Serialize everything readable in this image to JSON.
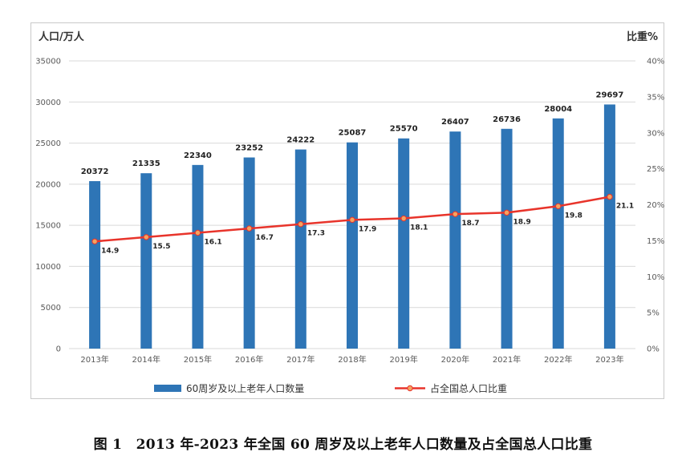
{
  "chart_data": {
    "type": "bar",
    "categories": [
      "2013年",
      "2014年",
      "2015年",
      "2016年",
      "2017年",
      "2018年",
      "2019年",
      "2020年",
      "2021年",
      "2022年",
      "2023年"
    ],
    "series": [
      {
        "name": "60周岁及以上老年人口数量",
        "type": "bar",
        "axis": "left",
        "color": "#2e75b6",
        "values": [
          20372,
          21335,
          22340,
          23252,
          24222,
          25087,
          25570,
          26407,
          26736,
          28004,
          29697
        ]
      },
      {
        "name": "占全国总人口比重",
        "type": "line",
        "axis": "right",
        "color": "#e8342b",
        "marker_color": "#f4a460",
        "values": [
          14.9,
          15.5,
          16.1,
          16.7,
          17.3,
          17.9,
          18.1,
          18.7,
          18.9,
          19.8,
          21.1
        ]
      }
    ],
    "ylabel": "人口/万人",
    "ylabel_right": "比重%",
    "ylim": [
      0,
      35000
    ],
    "yticks": [
      "0",
      "5000",
      "10000",
      "15000",
      "20000",
      "25000",
      "30000",
      "35000"
    ],
    "ylim_right": [
      0,
      40
    ],
    "yticks_right": [
      "0%",
      "5%",
      "10%",
      "15%",
      "20%",
      "25%",
      "30%",
      "35%",
      "40%"
    ],
    "grid": true,
    "legend_position": "bottom"
  },
  "caption": "图 1　2013 年-2023 年全国 60 周岁及以上老年人口数量及占全国总人口比重"
}
